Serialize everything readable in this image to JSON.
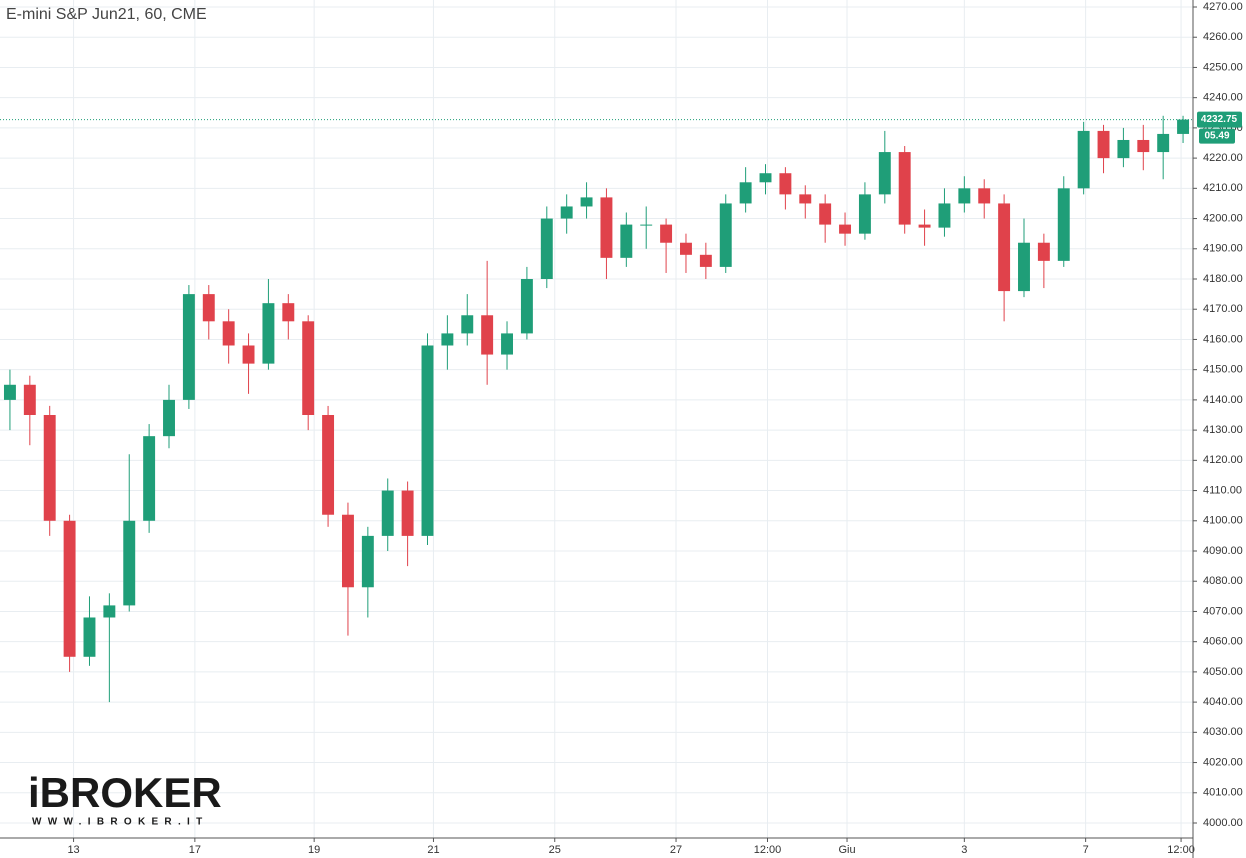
{
  "chart_data": {
    "type": "candlestick",
    "title": "E-mini S&P Jun21, 60, CME",
    "up_color": "#1f9e78",
    "down_color": "#e0424b",
    "grid": true,
    "x": [
      0,
      1,
      2,
      3,
      4,
      5,
      6,
      7,
      8,
      9,
      10,
      11,
      12,
      13,
      14,
      15,
      16,
      17,
      18,
      19,
      20,
      21,
      22,
      23,
      24,
      25,
      26,
      27,
      28,
      29,
      30,
      31,
      32,
      33,
      34,
      35,
      36,
      37,
      38,
      39,
      40,
      41,
      42,
      43,
      44,
      45,
      46,
      47,
      48,
      49,
      50,
      51,
      52,
      53,
      54,
      55,
      56,
      57,
      58,
      59
    ],
    "open": [
      4140,
      4145,
      4135,
      4100,
      4055,
      4068,
      4072,
      4100,
      4128,
      4140,
      4175,
      4166,
      4158,
      4152,
      4172,
      4166,
      4135,
      4102,
      4078,
      4095,
      4110,
      4095,
      4158,
      4162,
      4168,
      4155,
      4162,
      4180,
      4200,
      4204,
      4207,
      4187,
      4198,
      4198,
      4192,
      4188,
      4184,
      4205,
      4212,
      4215,
      4208,
      4205,
      4198,
      4195,
      4208,
      4222,
      4198,
      4197,
      4205,
      4210,
      4205,
      4176,
      4192,
      4186,
      4210,
      4229,
      4220,
      4226,
      4222,
      4228
    ],
    "high": [
      4150,
      4148,
      4138,
      4102,
      4075,
      4076,
      4122,
      4132,
      4145,
      4178,
      4178,
      4170,
      4162,
      4180,
      4175,
      4168,
      4138,
      4106,
      4098,
      4114,
      4113,
      4162,
      4168,
      4175,
      4186,
      4166,
      4184,
      4204,
      4208,
      4212,
      4210,
      4202,
      4204,
      4200,
      4195,
      4192,
      4208,
      4217,
      4218,
      4217,
      4211,
      4208,
      4202,
      4212,
      4229,
      4224,
      4203,
      4210,
      4214,
      4213,
      4208,
      4200,
      4195,
      4214,
      4232,
      4231,
      4230,
      4231,
      4234,
      4234
    ],
    "low": [
      4130,
      4125,
      4095,
      4050,
      4052,
      4040,
      4070,
      4096,
      4124,
      4137,
      4160,
      4152,
      4142,
      4150,
      4160,
      4130,
      4098,
      4062,
      4068,
      4090,
      4085,
      4092,
      4150,
      4158,
      4145,
      4150,
      4160,
      4177,
      4195,
      4200,
      4180,
      4184,
      4190,
      4182,
      4182,
      4180,
      4182,
      4202,
      4208,
      4203,
      4200,
      4192,
      4191,
      4193,
      4205,
      4195,
      4191,
      4194,
      4202,
      4200,
      4166,
      4174,
      4177,
      4184,
      4208,
      4215,
      4217,
      4216,
      4213,
      4225
    ],
    "close": [
      4145,
      4135,
      4100,
      4055,
      4068,
      4072,
      4100,
      4128,
      4140,
      4175,
      4166,
      4158,
      4152,
      4172,
      4166,
      4135,
      4102,
      4078,
      4095,
      4110,
      4095,
      4158,
      4162,
      4168,
      4155,
      4162,
      4180,
      4200,
      4204,
      4207,
      4187,
      4198,
      4198,
      4192,
      4188,
      4184,
      4205,
      4212,
      4215,
      4208,
      4205,
      4198,
      4195,
      4208,
      4222,
      4198,
      4197,
      4205,
      4210,
      4205,
      4176,
      4192,
      4186,
      4210,
      4229,
      4220,
      4226,
      4222,
      4228,
      4232.75
    ],
    "xlim": [
      -0.5,
      59.5
    ],
    "xticks": [
      {
        "value": 3.2,
        "label": "13"
      },
      {
        "value": 9.3,
        "label": "17"
      },
      {
        "value": 15.3,
        "label": "19"
      },
      {
        "value": 21.3,
        "label": "21"
      },
      {
        "value": 27.4,
        "label": "25"
      },
      {
        "value": 33.5,
        "label": "27"
      },
      {
        "value": 38.1,
        "label": "12:00"
      },
      {
        "value": 42.1,
        "label": "Giu"
      },
      {
        "value": 48,
        "label": "3"
      },
      {
        "value": 54.1,
        "label": "7"
      },
      {
        "value": 58.9,
        "label": "12:00"
      }
    ],
    "ylim": [
      4000,
      4270
    ],
    "yticks": [
      {
        "value": 4000,
        "label": "4000.00"
      },
      {
        "value": 4010,
        "label": "4010.00"
      },
      {
        "value": 4020,
        "label": "4020.00"
      },
      {
        "value": 4030,
        "label": "4030.00"
      },
      {
        "value": 4040,
        "label": "4040.00"
      },
      {
        "value": 4050,
        "label": "4050.00"
      },
      {
        "value": 4060,
        "label": "4060.00"
      },
      {
        "value": 4070,
        "label": "4070.00"
      },
      {
        "value": 4080,
        "label": "4080.00"
      },
      {
        "value": 4090,
        "label": "4090.00"
      },
      {
        "value": 4100,
        "label": "4100.00"
      },
      {
        "value": 4110,
        "label": "4110.00"
      },
      {
        "value": 4120,
        "label": "4120.00"
      },
      {
        "value": 4130,
        "label": "4130.00"
      },
      {
        "value": 4140,
        "label": "4140.00"
      },
      {
        "value": 4150,
        "label": "4150.00"
      },
      {
        "value": 4160,
        "label": "4160.00"
      },
      {
        "value": 4170,
        "label": "4170.00"
      },
      {
        "value": 4180,
        "label": "4180.00"
      },
      {
        "value": 4190,
        "label": "4190.00"
      },
      {
        "value": 4200,
        "label": "4200.00"
      },
      {
        "value": 4210,
        "label": "4210.00"
      },
      {
        "value": 4220,
        "label": "4220.00"
      },
      {
        "value": 4230,
        "label": "4230.00"
      },
      {
        "value": 4240,
        "label": "4240.00"
      },
      {
        "value": 4250,
        "label": "4250.00"
      },
      {
        "value": 4260,
        "label": "4260.00"
      },
      {
        "value": 4270,
        "label": "4270.00"
      }
    ],
    "last_price": 4232.75,
    "countdown": "05.49",
    "logo": "iBROKER",
    "logo_url": "WWW.IBROKER.IT"
  }
}
